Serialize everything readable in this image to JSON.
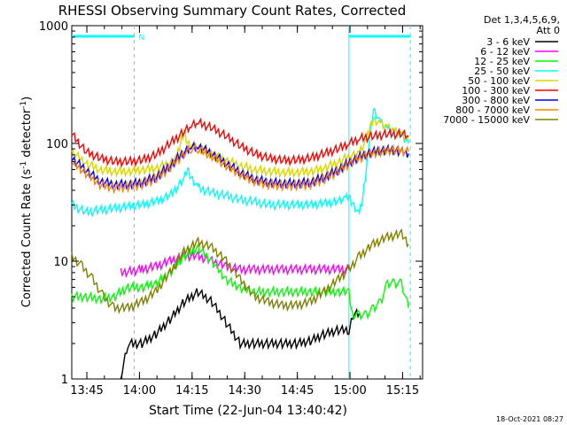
{
  "chart_data": {
    "type": "line",
    "title": "RHESSI Observing Summary Count Rates, Corrected",
    "xlabel": "Start Time (22-Jun-04 13:40:42)",
    "ylabel_main": "Corrected Count Rate (s",
    "ylabel_sup1": "-1",
    "ylabel_mid": " detector",
    "ylabel_sup2": "-1",
    "ylabel_end": ")",
    "y_scale": "log",
    "ylim": [
      1,
      1000
    ],
    "xlim_minutes": [
      0,
      100
    ],
    "x_ticks": [
      {
        "label": "13:45",
        "minute": 4.3
      },
      {
        "label": "14:00",
        "minute": 19.3
      },
      {
        "label": "14:15",
        "minute": 34.3
      },
      {
        "label": "14:30",
        "minute": 49.3
      },
      {
        "label": "14:45",
        "minute": 64.3
      },
      {
        "label": "15:00",
        "minute": 79.3
      },
      {
        "label": "15:15",
        "minute": 94.3
      }
    ],
    "y_ticks": [
      {
        "label": "1",
        "value": 1
      },
      {
        "label": "10",
        "value": 10
      },
      {
        "label": "100",
        "value": 100
      },
      {
        "label": "1000",
        "value": 1000
      }
    ],
    "legend_header": [
      "Det 1,3,4,5,6,9,",
      "Att 0"
    ],
    "legend_position": "right",
    "annotations": {
      "night_label": "N",
      "night_intervals": [
        [
          0,
          17.8
        ],
        [
          79.0,
          96.5
        ]
      ],
      "footer_date": "18-Oct-2021 08:27"
    },
    "series": [
      {
        "name": "3 - 6 keV",
        "color": "#000000",
        "points": [
          [
            14,
            1
          ],
          [
            16,
            2.0
          ],
          [
            20,
            2.0
          ],
          [
            24,
            2.4
          ],
          [
            28,
            3.2
          ],
          [
            32,
            4.5
          ],
          [
            36,
            5.5
          ],
          [
            40,
            4.5
          ],
          [
            44,
            3.0
          ],
          [
            48,
            2.0
          ],
          [
            52,
            2.0
          ],
          [
            56,
            2.0
          ],
          [
            60,
            2.0
          ],
          [
            64,
            2.0
          ],
          [
            68,
            2.1
          ],
          [
            72,
            2.4
          ],
          [
            76,
            2.6
          ],
          [
            79,
            2.6
          ],
          [
            80,
            3.5
          ],
          [
            82,
            3.6
          ]
        ]
      },
      {
        "name": "6 - 12 keV",
        "color": "#ff00ff",
        "points": [
          [
            14,
            8
          ],
          [
            20,
            8.5
          ],
          [
            24,
            9
          ],
          [
            28,
            10
          ],
          [
            32,
            11
          ],
          [
            36,
            11
          ],
          [
            40,
            10
          ],
          [
            44,
            9
          ],
          [
            48,
            8.5
          ],
          [
            52,
            8.5
          ],
          [
            56,
            8.5
          ],
          [
            60,
            8.5
          ],
          [
            64,
            8.5
          ],
          [
            68,
            8.5
          ],
          [
            72,
            8.5
          ],
          [
            76,
            8.5
          ],
          [
            79,
            8.5
          ]
        ]
      },
      {
        "name": "12 - 25 keV",
        "color": "#00ff00",
        "points": [
          [
            0,
            5
          ],
          [
            4,
            5
          ],
          [
            8,
            4.8
          ],
          [
            12,
            5
          ],
          [
            16,
            6
          ],
          [
            20,
            6
          ],
          [
            24,
            6.5
          ],
          [
            28,
            8
          ],
          [
            32,
            11
          ],
          [
            36,
            13
          ],
          [
            40,
            10
          ],
          [
            44,
            7
          ],
          [
            48,
            6
          ],
          [
            52,
            5.5
          ],
          [
            56,
            5.5
          ],
          [
            60,
            5.5
          ],
          [
            64,
            5.5
          ],
          [
            68,
            5.5
          ],
          [
            72,
            5.5
          ],
          [
            76,
            5.5
          ],
          [
            79,
            5.5
          ],
          [
            80,
            3.5
          ],
          [
            82,
            3.5
          ],
          [
            84,
            3.5
          ],
          [
            86,
            4
          ],
          [
            88,
            4.5
          ],
          [
            90,
            6.5
          ],
          [
            92,
            6.5
          ],
          [
            94,
            6.5
          ],
          [
            96,
            4.0
          ]
        ]
      },
      {
        "name": "25 - 50 keV",
        "color": "#00ffff",
        "points": [
          [
            0,
            30
          ],
          [
            4,
            26
          ],
          [
            8,
            27
          ],
          [
            12,
            28
          ],
          [
            16,
            29
          ],
          [
            20,
            30
          ],
          [
            24,
            32
          ],
          [
            28,
            36
          ],
          [
            32,
            50
          ],
          [
            33,
            60
          ],
          [
            34,
            50
          ],
          [
            36,
            42
          ],
          [
            40,
            38
          ],
          [
            44,
            36
          ],
          [
            48,
            33
          ],
          [
            52,
            32
          ],
          [
            56,
            30
          ],
          [
            60,
            30
          ],
          [
            64,
            30
          ],
          [
            68,
            30
          ],
          [
            72,
            31
          ],
          [
            76,
            32
          ],
          [
            78,
            34
          ],
          [
            79,
            35
          ],
          [
            80,
            30
          ],
          [
            82,
            25
          ],
          [
            83,
            35
          ],
          [
            84,
            60
          ],
          [
            85,
            120
          ],
          [
            86,
            190
          ],
          [
            88,
            150
          ],
          [
            90,
            130
          ],
          [
            92,
            125
          ],
          [
            94,
            115
          ],
          [
            96,
            100
          ]
        ]
      },
      {
        "name": "50 - 100 keV",
        "color": "#d8d800",
        "points": [
          [
            0,
            85
          ],
          [
            4,
            68
          ],
          [
            8,
            60
          ],
          [
            12,
            58
          ],
          [
            16,
            58
          ],
          [
            20,
            60
          ],
          [
            24,
            62
          ],
          [
            28,
            68
          ],
          [
            30,
            80
          ],
          [
            31,
            100
          ],
          [
            32,
            130
          ],
          [
            33,
            100
          ],
          [
            36,
            92
          ],
          [
            40,
            80
          ],
          [
            44,
            72
          ],
          [
            48,
            65
          ],
          [
            52,
            60
          ],
          [
            56,
            58
          ],
          [
            60,
            57
          ],
          [
            64,
            57
          ],
          [
            68,
            58
          ],
          [
            72,
            62
          ],
          [
            76,
            70
          ],
          [
            80,
            80
          ],
          [
            82,
            85
          ],
          [
            84,
            110
          ],
          [
            85,
            140
          ],
          [
            86,
            160
          ],
          [
            88,
            150
          ],
          [
            90,
            140
          ],
          [
            92,
            130
          ],
          [
            94,
            122
          ],
          [
            96,
            110
          ]
        ]
      },
      {
        "name": "100 - 300 keV",
        "color": "#ff0000",
        "points": [
          [
            0,
            120
          ],
          [
            4,
            85
          ],
          [
            8,
            75
          ],
          [
            12,
            70
          ],
          [
            16,
            70
          ],
          [
            20,
            72
          ],
          [
            24,
            80
          ],
          [
            28,
            100
          ],
          [
            32,
            125
          ],
          [
            34,
            140
          ],
          [
            36,
            150
          ],
          [
            40,
            135
          ],
          [
            44,
            115
          ],
          [
            48,
            95
          ],
          [
            52,
            82
          ],
          [
            56,
            75
          ],
          [
            60,
            72
          ],
          [
            64,
            72
          ],
          [
            68,
            75
          ],
          [
            72,
            82
          ],
          [
            76,
            90
          ],
          [
            79,
            100
          ],
          [
            82,
            110
          ],
          [
            86,
            115
          ],
          [
            90,
            120
          ],
          [
            94,
            120
          ],
          [
            96,
            115
          ]
        ]
      },
      {
        "name": "300 - 800 keV",
        "color": "#0000ff",
        "points": [
          [
            0,
            75
          ],
          [
            4,
            60
          ],
          [
            8,
            48
          ],
          [
            12,
            45
          ],
          [
            16,
            45
          ],
          [
            20,
            47
          ],
          [
            24,
            52
          ],
          [
            28,
            65
          ],
          [
            32,
            85
          ],
          [
            34,
            95
          ],
          [
            36,
            95
          ],
          [
            40,
            82
          ],
          [
            44,
            68
          ],
          [
            48,
            57
          ],
          [
            52,
            50
          ],
          [
            56,
            47
          ],
          [
            60,
            46
          ],
          [
            64,
            46
          ],
          [
            68,
            47
          ],
          [
            72,
            52
          ],
          [
            76,
            60
          ],
          [
            80,
            72
          ],
          [
            84,
            82
          ],
          [
            88,
            88
          ],
          [
            92,
            88
          ],
          [
            96,
            82
          ]
        ]
      },
      {
        "name": "800 - 7000 keV",
        "color": "#ff8000",
        "points": [
          [
            0,
            70
          ],
          [
            4,
            56
          ],
          [
            8,
            45
          ],
          [
            12,
            42
          ],
          [
            16,
            43
          ],
          [
            20,
            45
          ],
          [
            24,
            50
          ],
          [
            28,
            62
          ],
          [
            32,
            82
          ],
          [
            34,
            90
          ],
          [
            36,
            90
          ],
          [
            40,
            78
          ],
          [
            44,
            65
          ],
          [
            48,
            55
          ],
          [
            52,
            48
          ],
          [
            56,
            45
          ],
          [
            60,
            44
          ],
          [
            64,
            44
          ],
          [
            68,
            45
          ],
          [
            72,
            50
          ],
          [
            76,
            58
          ],
          [
            80,
            70
          ],
          [
            84,
            80
          ],
          [
            88,
            85
          ],
          [
            92,
            88
          ],
          [
            96,
            85
          ]
        ]
      },
      {
        "name": "7000 - 15000 keV",
        "color": "#808000",
        "points": [
          [
            0,
            11
          ],
          [
            3,
            9
          ],
          [
            6,
            7
          ],
          [
            9,
            5
          ],
          [
            12,
            4
          ],
          [
            16,
            4
          ],
          [
            20,
            4.5
          ],
          [
            24,
            5.5
          ],
          [
            28,
            8
          ],
          [
            32,
            12
          ],
          [
            36,
            14.5
          ],
          [
            40,
            13
          ],
          [
            44,
            10
          ],
          [
            48,
            7
          ],
          [
            52,
            5
          ],
          [
            56,
            4.5
          ],
          [
            60,
            4.2
          ],
          [
            64,
            4.2
          ],
          [
            68,
            4.5
          ],
          [
            72,
            5.5
          ],
          [
            76,
            7
          ],
          [
            79,
            8.5
          ],
          [
            82,
            11
          ],
          [
            86,
            14
          ],
          [
            90,
            16
          ],
          [
            94,
            17
          ],
          [
            96,
            14
          ]
        ]
      }
    ]
  }
}
